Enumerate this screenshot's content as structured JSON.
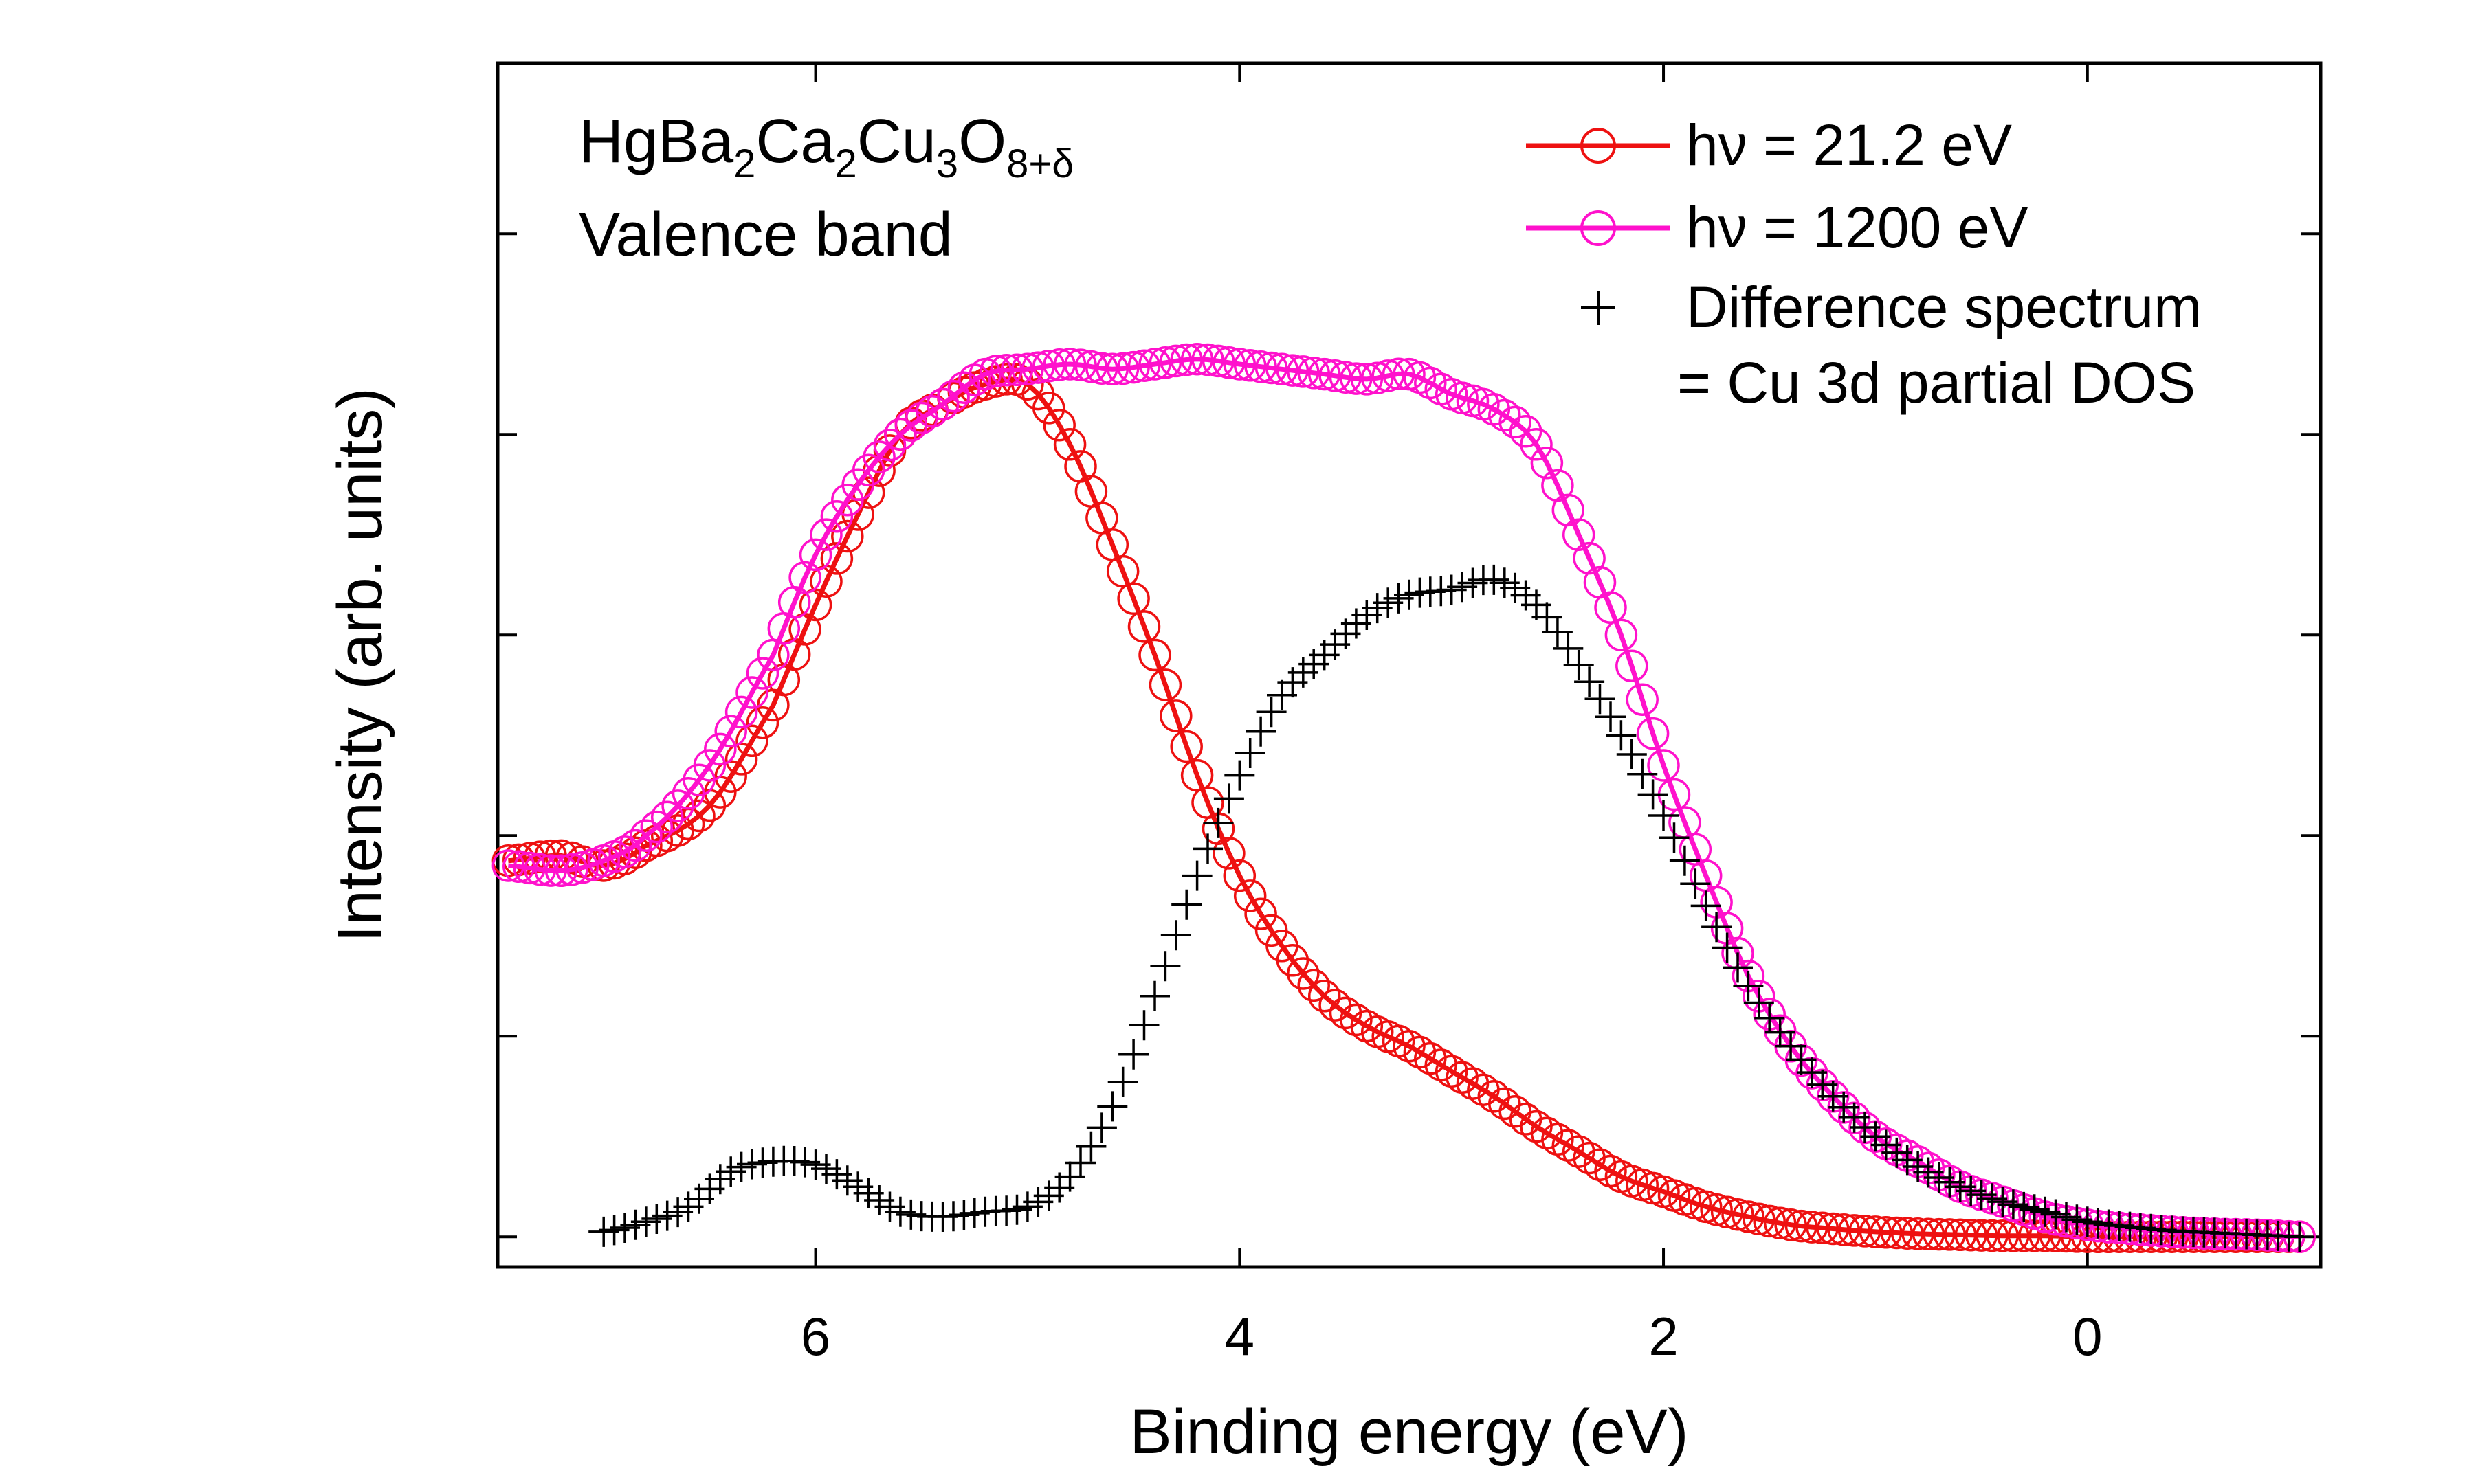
{
  "chart_data": {
    "type": "line",
    "title": "",
    "annotation": {
      "line1_parts": [
        "HgBa",
        "2",
        "Ca",
        "2",
        "Cu",
        "3",
        "O",
        "8+δ"
      ],
      "line2": "Valence band"
    },
    "xlabel": "Binding energy (eV)",
    "ylabel": "Intensity (arb. units)",
    "xlim": [
      7.5,
      -1.1
    ],
    "x_reversed": true,
    "ylim": [
      -0.03,
      1.17
    ],
    "xticks": [
      6,
      4,
      2,
      0
    ],
    "xtick_labels": [
      "6",
      "4",
      "2",
      "0"
    ],
    "yticks": [
      0,
      0.2,
      0.4,
      0.6,
      0.8,
      1.0,
      1.2
    ],
    "ytick_labels_shown": false,
    "legend_position": "top-right",
    "legend": [
      {
        "label": "hν = 21.2 eV",
        "marker": "open-circle",
        "line": true,
        "color": "#ee1111"
      },
      {
        "label": "hν = 1200 eV",
        "marker": "open-circle",
        "line": true,
        "color": "#ff11cc"
      },
      {
        "label_line1": "Difference spectrum",
        "label_line2": "= Cu 3d partial DOS",
        "marker": "plus",
        "line": false,
        "color": "#000000"
      }
    ],
    "series": [
      {
        "name": "hν = 21.2 eV",
        "color": "#ee1111",
        "x": [
          7.45,
          7.2,
          7.0,
          6.8,
          6.5,
          6.2,
          6.0,
          5.8,
          5.6,
          5.4,
          5.2,
          5.0,
          4.8,
          4.6,
          4.4,
          4.2,
          4.0,
          3.8,
          3.6,
          3.4,
          3.2,
          3.0,
          2.8,
          2.6,
          2.4,
          2.2,
          2.0,
          1.8,
          1.6,
          1.4,
          1.2,
          1.0,
          0.8,
          0.6,
          0.4,
          0.2,
          0.0,
          -0.2,
          -0.4,
          -0.6,
          -0.8,
          -1.0
        ],
        "y": [
          0.375,
          0.38,
          0.37,
          0.39,
          0.43,
          0.53,
          0.63,
          0.72,
          0.8,
          0.83,
          0.85,
          0.85,
          0.79,
          0.69,
          0.58,
          0.46,
          0.36,
          0.29,
          0.24,
          0.21,
          0.19,
          0.165,
          0.14,
          0.11,
          0.085,
          0.06,
          0.045,
          0.03,
          0.02,
          0.012,
          0.008,
          0.005,
          0.003,
          0.002,
          0.001,
          0.001,
          0.0,
          0.0,
          0.0,
          0.0,
          0.0,
          0.0
        ]
      },
      {
        "name": "hν = 1200 eV",
        "color": "#ff11cc",
        "x": [
          7.45,
          7.2,
          7.0,
          6.8,
          6.5,
          6.2,
          6.0,
          5.8,
          5.6,
          5.4,
          5.2,
          5.0,
          4.8,
          4.6,
          4.4,
          4.2,
          4.0,
          3.8,
          3.6,
          3.4,
          3.2,
          3.0,
          2.8,
          2.6,
          2.4,
          2.2,
          2.0,
          1.8,
          1.6,
          1.4,
          1.2,
          1.0,
          0.8,
          0.6,
          0.4,
          0.2,
          0.0,
          -0.2,
          -0.4,
          -0.6,
          -0.8,
          -1.0
        ],
        "y": [
          0.37,
          0.365,
          0.375,
          0.4,
          0.47,
          0.58,
          0.68,
          0.75,
          0.8,
          0.83,
          0.86,
          0.865,
          0.87,
          0.865,
          0.87,
          0.875,
          0.87,
          0.865,
          0.86,
          0.855,
          0.86,
          0.84,
          0.825,
          0.79,
          0.7,
          0.6,
          0.47,
          0.36,
          0.26,
          0.19,
          0.14,
          0.1,
          0.075,
          0.05,
          0.035,
          0.02,
          0.012,
          0.008,
          0.005,
          0.003,
          0.002,
          0.0
        ]
      },
      {
        "name": "Difference spectrum",
        "color": "#000000",
        "x": [
          7.0,
          6.8,
          6.6,
          6.4,
          6.2,
          6.0,
          5.8,
          5.6,
          5.4,
          5.2,
          5.0,
          4.8,
          4.6,
          4.4,
          4.2,
          4.0,
          3.8,
          3.6,
          3.4,
          3.2,
          3.0,
          2.8,
          2.6,
          2.4,
          2.2,
          2.0,
          1.8,
          1.6,
          1.4,
          1.2,
          1.0,
          0.8,
          0.6,
          0.4,
          0.2,
          0.0,
          -0.2,
          -0.4,
          -0.6,
          -0.8,
          -1.0
        ],
        "y": [
          0.005,
          0.015,
          0.03,
          0.065,
          0.075,
          0.072,
          0.05,
          0.025,
          0.02,
          0.025,
          0.03,
          0.06,
          0.13,
          0.24,
          0.36,
          0.46,
          0.54,
          0.58,
          0.62,
          0.64,
          0.645,
          0.655,
          0.63,
          0.57,
          0.5,
          0.42,
          0.33,
          0.25,
          0.19,
          0.14,
          0.1,
          0.07,
          0.05,
          0.035,
          0.025,
          0.015,
          0.01,
          0.006,
          0.004,
          0.002,
          0.0
        ]
      }
    ]
  }
}
